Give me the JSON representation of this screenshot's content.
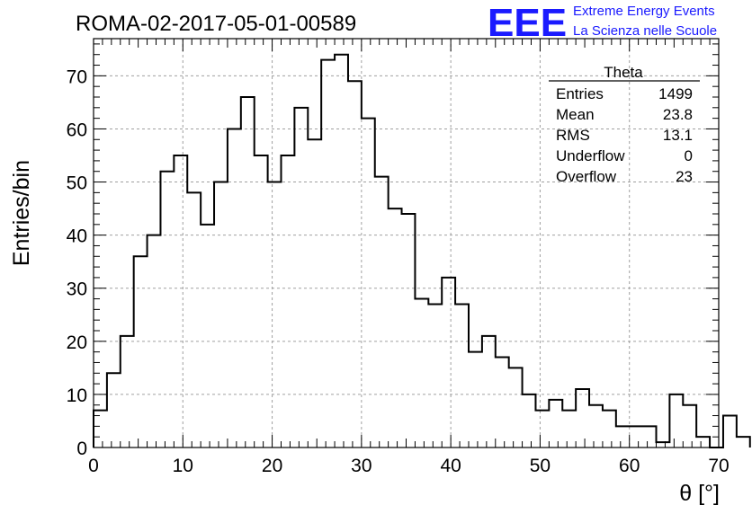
{
  "chart_data": {
    "type": "bar",
    "title": "ROMA-02-2017-05-01-00589",
    "xlabel": "θ [°]",
    "ylabel": "Entries/bin",
    "xlim": [
      0,
      70
    ],
    "ylim": [
      0,
      77
    ],
    "grid": true,
    "bin_width": 1.5,
    "x_ticks": [
      0,
      10,
      20,
      30,
      40,
      50,
      60,
      70
    ],
    "y_ticks": [
      0,
      10,
      20,
      30,
      40,
      50,
      60,
      70
    ],
    "values": [
      7,
      14,
      21,
      36,
      40,
      52,
      55,
      48,
      42,
      50,
      60,
      66,
      55,
      50,
      55,
      64,
      58,
      73,
      74,
      69,
      62,
      51,
      45,
      44,
      28,
      27,
      32,
      27,
      18,
      21,
      17,
      15,
      10,
      7,
      9,
      7,
      11,
      8,
      7,
      4,
      4,
      4,
      1,
      10,
      8,
      2,
      0,
      6,
      2
    ]
  },
  "stats": {
    "name": "Theta",
    "rows": [
      {
        "label": "Entries",
        "value": "1499"
      },
      {
        "label": "Mean",
        "value": "23.8"
      },
      {
        "label": "RMS",
        "value": "13.1"
      },
      {
        "label": "Underflow",
        "value": "0"
      },
      {
        "label": "Overflow",
        "value": "23"
      }
    ]
  },
  "logo": {
    "mark": "EEE",
    "line1": "Extreme Energy Events",
    "line2": "La Scienza nelle Scuole",
    "color": "#1a1aff"
  }
}
